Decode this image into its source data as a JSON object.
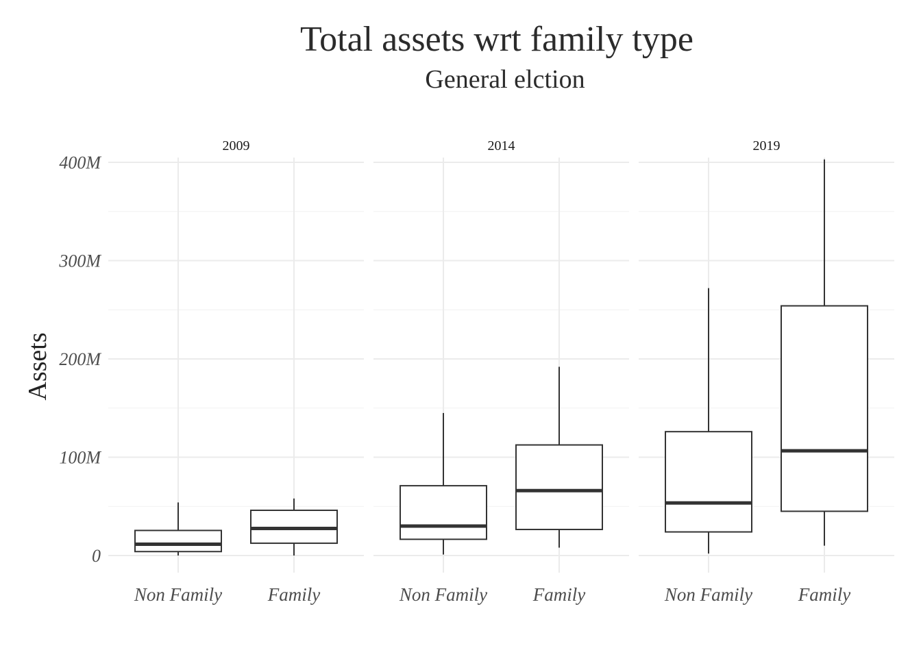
{
  "chart_data": {
    "type": "boxplot",
    "title": "Total assets wrt family type",
    "subtitle": "General elction",
    "ylabel": "Assets",
    "xlabel": "",
    "ylim": [
      0,
      400000000
    ],
    "yticks": [
      0,
      100000000,
      200000000,
      300000000,
      400000000
    ],
    "ytick_labels": [
      "0",
      "100M",
      "200M",
      "300M",
      "400M"
    ],
    "categories": [
      "Non Family",
      "Family"
    ],
    "grid": true,
    "panels": [
      {
        "label": "2009",
        "boxes": [
          {
            "category": "Non Family",
            "whisker_low": 0,
            "q1": 4000000,
            "median": 11500000,
            "q3": 25500000,
            "whisker_high": 54000000
          },
          {
            "category": "Family",
            "whisker_low": 0,
            "q1": 12500000,
            "median": 27500000,
            "q3": 46000000,
            "whisker_high": 58000000
          }
        ]
      },
      {
        "label": "2014",
        "boxes": [
          {
            "category": "Non Family",
            "whisker_low": 1000000,
            "q1": 16500000,
            "median": 30000000,
            "q3": 71000000,
            "whisker_high": 145000000
          },
          {
            "category": "Family",
            "whisker_low": 8000000,
            "q1": 26500000,
            "median": 66000000,
            "q3": 112500000,
            "whisker_high": 192000000
          }
        ]
      },
      {
        "label": "2019",
        "boxes": [
          {
            "category": "Non Family",
            "whisker_low": 2000000,
            "q1": 24000000,
            "median": 53500000,
            "q3": 126000000,
            "whisker_high": 272000000
          },
          {
            "category": "Family",
            "whisker_low": 10000000,
            "q1": 45000000,
            "median": 106500000,
            "q3": 254000000,
            "whisker_high": 403000000
          }
        ]
      }
    ]
  }
}
